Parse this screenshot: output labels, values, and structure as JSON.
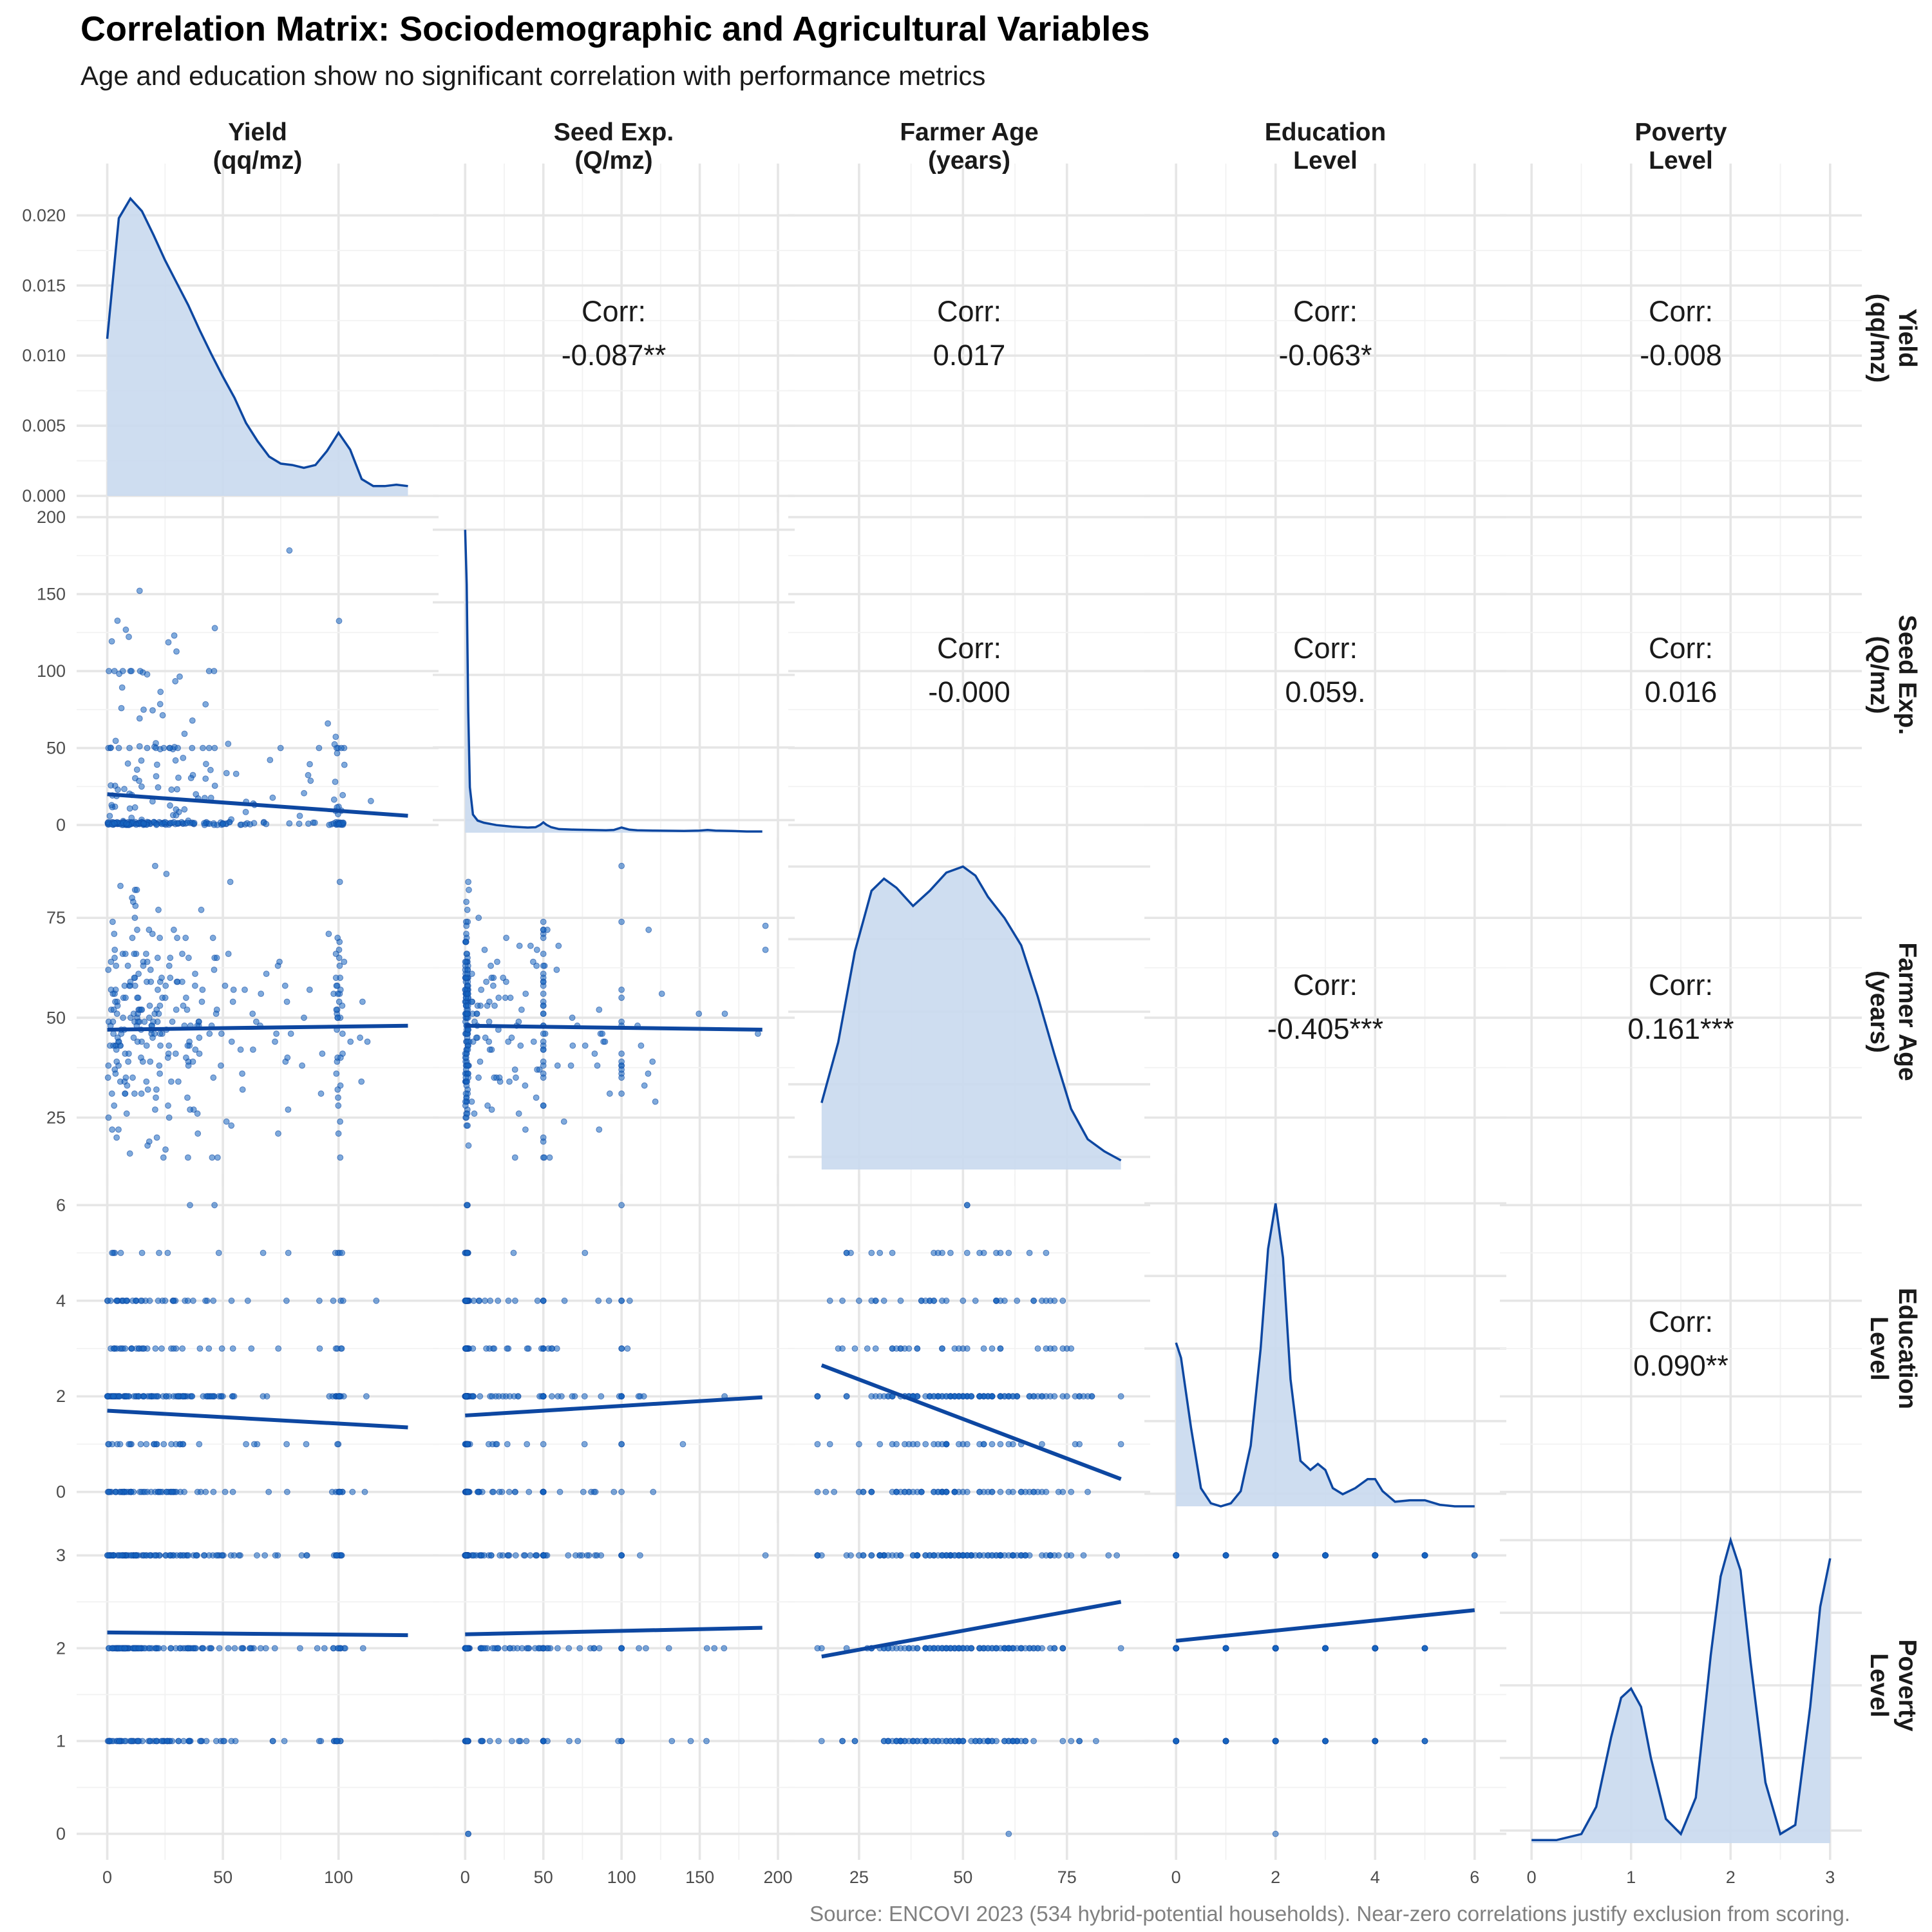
{
  "header": {
    "title": "Correlation Matrix: Sociodemographic and Agricultural Variables",
    "subtitle": "Age and education show no significant correlation with performance metrics"
  },
  "caption": "Source: ENCOVI 2023 (534 hybrid-potential households). Near-zero correlations justify exclusion from scoring.",
  "colors": {
    "accent": "#0D47A1",
    "density_fill": "#C9D9EE",
    "point": "#1565C0",
    "grid": "#E6E6E6",
    "tick_text": "#4D4D4D"
  },
  "chart_data": {
    "type": "scatter",
    "layout": "pairs-matrix",
    "grid": true,
    "variables": [
      {
        "key": "yield",
        "column_label": [
          "Yield",
          "(qq/mz)"
        ],
        "row_label": [
          "Yield",
          "(qq/mz)"
        ],
        "xlim": [
          -6,
          136
        ],
        "xticks": [
          0,
          50,
          100
        ],
        "xtick_labels": [
          "0",
          "50",
          "100"
        ]
      },
      {
        "key": "seed",
        "column_label": [
          "Seed Exp.",
          "(Q/mz)"
        ],
        "row_label": [
          "Seed Exp.",
          "(Q/mz)"
        ],
        "xlim": [
          -10,
          200
        ],
        "xticks": [
          0,
          50,
          100,
          150,
          200
        ],
        "xtick_labels": [
          "0",
          "50",
          "100",
          "150",
          "200"
        ],
        "ylim": [
          -5,
          200
        ],
        "yticks": [
          0,
          50,
          100,
          150,
          200
        ],
        "ytick_labels": [
          "0",
          "50",
          "100",
          "150",
          "200"
        ]
      },
      {
        "key": "age",
        "column_label": [
          "Farmer Age",
          "(years)"
        ],
        "row_label": [
          "Farmer Age",
          "(years)"
        ],
        "xlim": [
          12,
          91
        ],
        "xticks": [
          25,
          50,
          75
        ],
        "xtick_labels": [
          "25",
          "50",
          "75"
        ],
        "ylim": [
          12,
          91
        ],
        "yticks": [
          25,
          50,
          75
        ],
        "ytick_labels": [
          "25",
          "50",
          "75"
        ]
      },
      {
        "key": "education",
        "column_label": [
          "Education",
          "Level"
        ],
        "row_label": [
          "Education",
          "Level"
        ],
        "xlim": [
          -0.3,
          6.3
        ],
        "xticks": [
          0,
          2,
          4,
          6
        ],
        "xtick_labels": [
          "0",
          "2",
          "4",
          "6"
        ],
        "ylim": [
          -0.3,
          6.3
        ],
        "yticks": [
          0,
          2,
          4,
          6
        ],
        "ytick_labels": [
          "0",
          "2",
          "4",
          "6"
        ]
      },
      {
        "key": "poverty",
        "column_label": [
          "Poverty",
          "Level"
        ],
        "row_label": [
          "Poverty",
          "Level"
        ],
        "xlim": [
          -0.15,
          3.15
        ],
        "xticks": [
          0,
          1,
          2,
          3
        ],
        "xtick_labels": [
          "0",
          "1",
          "2",
          "3"
        ],
        "ylim": [
          -0.1,
          3.3
        ],
        "yticks": [
          0,
          1,
          2,
          3
        ],
        "ytick_labels": [
          "0",
          "1",
          "2",
          "3"
        ]
      }
    ],
    "density_axis": {
      "ylim": [
        0,
        0.0225
      ],
      "yticks": [
        0,
        0.005,
        0.01,
        0.015,
        0.02
      ],
      "ytick_labels": [
        "0.000",
        "0.005",
        "0.010",
        "0.015",
        "0.020"
      ]
    },
    "correlations": [
      {
        "row": 0,
        "col": 1,
        "label": "Corr:",
        "value": "-0.087**"
      },
      {
        "row": 0,
        "col": 2,
        "label": "Corr:",
        "value": "0.017"
      },
      {
        "row": 0,
        "col": 3,
        "label": "Corr:",
        "value": "-0.063*"
      },
      {
        "row": 0,
        "col": 4,
        "label": "Corr:",
        "value": "-0.008"
      },
      {
        "row": 1,
        "col": 2,
        "label": "Corr:",
        "value": "-0.000"
      },
      {
        "row": 1,
        "col": 3,
        "label": "Corr:",
        "value": "0.059."
      },
      {
        "row": 1,
        "col": 4,
        "label": "Corr:",
        "value": "0.016"
      },
      {
        "row": 2,
        "col": 3,
        "label": "Corr:",
        "value": "-0.405***"
      },
      {
        "row": 2,
        "col": 4,
        "label": "Corr:",
        "value": "0.161***"
      },
      {
        "row": 3,
        "col": 4,
        "label": "Corr:",
        "value": "0.090**"
      }
    ],
    "densities": [
      {
        "var": 0,
        "x": [
          0,
          5,
          10,
          15,
          20,
          25,
          30,
          35,
          40,
          45,
          50,
          55,
          60,
          65,
          70,
          75,
          80,
          85,
          90,
          95,
          100,
          105,
          110,
          115,
          120,
          125,
          130
        ],
        "y": [
          0.0112,
          0.0198,
          0.0212,
          0.0203,
          0.0186,
          0.0168,
          0.0152,
          0.0136,
          0.0118,
          0.0101,
          0.0085,
          0.007,
          0.0052,
          0.0039,
          0.0028,
          0.0023,
          0.0022,
          0.002,
          0.0022,
          0.0032,
          0.0045,
          0.0033,
          0.0012,
          0.0007,
          0.0007,
          0.0008,
          0.0007
        ]
      },
      {
        "var": 1,
        "x": [
          0,
          1,
          2,
          3,
          5,
          8,
          12,
          20,
          30,
          40,
          45,
          48,
          50,
          52,
          55,
          60,
          70,
          80,
          90,
          95,
          100,
          105,
          110,
          120,
          140,
          150,
          155,
          160,
          170,
          180,
          190
        ],
        "y": [
          1.0,
          0.82,
          0.4,
          0.15,
          0.06,
          0.04,
          0.033,
          0.025,
          0.02,
          0.017,
          0.018,
          0.026,
          0.034,
          0.026,
          0.018,
          0.012,
          0.01,
          0.009,
          0.008,
          0.009,
          0.017,
          0.01,
          0.008,
          0.007,
          0.006,
          0.007,
          0.009,
          0.007,
          0.006,
          0.004,
          0.004
        ]
      },
      {
        "var": 2,
        "x": [
          16,
          20,
          24,
          28,
          31,
          34,
          38,
          42,
          46,
          50,
          53,
          56,
          60,
          64,
          68,
          72,
          76,
          80,
          84,
          88
        ],
        "y": [
          0.22,
          0.42,
          0.72,
          0.92,
          0.96,
          0.93,
          0.87,
          0.92,
          0.98,
          1.0,
          0.97,
          0.9,
          0.83,
          0.74,
          0.57,
          0.38,
          0.2,
          0.1,
          0.06,
          0.03
        ]
      },
      {
        "var": 3,
        "x": [
          0,
          0.1,
          0.3,
          0.5,
          0.7,
          0.9,
          1.1,
          1.3,
          1.5,
          1.7,
          1.85,
          2.0,
          2.15,
          2.3,
          2.5,
          2.7,
          2.85,
          3.0,
          3.15,
          3.35,
          3.6,
          3.85,
          4.0,
          4.15,
          4.4,
          4.7,
          5.0,
          5.3,
          5.6,
          6.0
        ],
        "y": [
          0.54,
          0.49,
          0.26,
          0.06,
          0.01,
          0.0,
          0.01,
          0.05,
          0.2,
          0.52,
          0.85,
          1.0,
          0.82,
          0.42,
          0.15,
          0.12,
          0.14,
          0.12,
          0.06,
          0.04,
          0.06,
          0.09,
          0.09,
          0.05,
          0.015,
          0.02,
          0.02,
          0.005,
          0.0,
          0.0
        ]
      },
      {
        "var": 4,
        "x": [
          0,
          0.25,
          0.5,
          0.65,
          0.8,
          0.9,
          1.0,
          1.1,
          1.2,
          1.35,
          1.5,
          1.65,
          1.8,
          1.9,
          2.0,
          2.1,
          2.2,
          2.35,
          2.5,
          2.65,
          2.8,
          2.9,
          3.0
        ],
        "y": [
          0.01,
          0.01,
          0.03,
          0.12,
          0.35,
          0.48,
          0.51,
          0.45,
          0.28,
          0.08,
          0.03,
          0.15,
          0.62,
          0.88,
          1.0,
          0.9,
          0.6,
          0.2,
          0.03,
          0.06,
          0.45,
          0.78,
          0.94
        ]
      }
    ],
    "fit_lines": [
      {
        "row": 1,
        "col": 0,
        "x": [
          0,
          130
        ],
        "y": [
          20,
          6
        ]
      },
      {
        "row": 2,
        "col": 0,
        "x": [
          0,
          130
        ],
        "y": [
          47,
          48
        ]
      },
      {
        "row": 2,
        "col": 1,
        "x": [
          0,
          190
        ],
        "y": [
          48,
          47
        ]
      },
      {
        "row": 3,
        "col": 0,
        "x": [
          0,
          130
        ],
        "y": [
          1.7,
          1.35
        ]
      },
      {
        "row": 3,
        "col": 1,
        "x": [
          0,
          190
        ],
        "y": [
          1.6,
          1.98
        ]
      },
      {
        "row": 3,
        "col": 2,
        "x": [
          16,
          88
        ],
        "y": [
          2.65,
          0.27
        ]
      },
      {
        "row": 4,
        "col": 0,
        "x": [
          0,
          130
        ],
        "y": [
          2.17,
          2.14
        ]
      },
      {
        "row": 4,
        "col": 1,
        "x": [
          0,
          190
        ],
        "y": [
          2.15,
          2.22
        ]
      },
      {
        "row": 4,
        "col": 2,
        "x": [
          16,
          88
        ],
        "y": [
          1.91,
          2.5
        ]
      },
      {
        "row": 4,
        "col": 3,
        "x": [
          0,
          6
        ],
        "y": [
          2.08,
          2.41
        ]
      }
    ]
  }
}
